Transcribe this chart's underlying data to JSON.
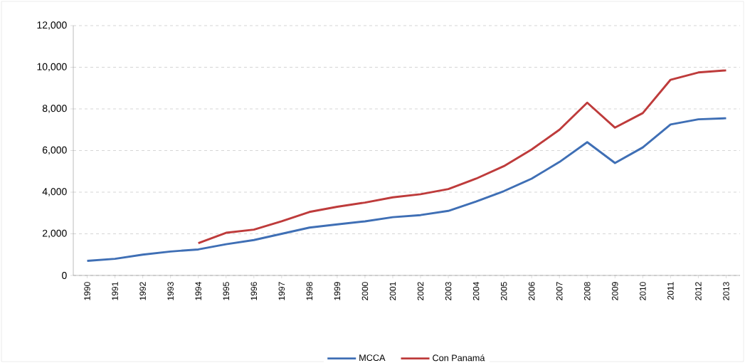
{
  "chart_data": {
    "type": "line",
    "categories": [
      "1990",
      "1991",
      "1992",
      "1993",
      "1994",
      "1995",
      "1996",
      "1997",
      "1998",
      "1999",
      "2000",
      "2001",
      "2002",
      "2003",
      "2004",
      "2005",
      "2006",
      "2007",
      "2008",
      "2009",
      "2010",
      "2011",
      "2012",
      "2013"
    ],
    "series": [
      {
        "name": "MCCA",
        "color": "#3f6fb5",
        "values": [
          700,
          800,
          1000,
          1150,
          1250,
          1500,
          1700,
          2000,
          2300,
          2450,
          2600,
          2800,
          2900,
          3100,
          3550,
          4050,
          4650,
          5450,
          6400,
          5400,
          6150,
          7250,
          7500,
          7550
        ]
      },
      {
        "name": "Con Panamá",
        "color": "#be3b3b",
        "values": [
          null,
          null,
          null,
          null,
          1550,
          2050,
          2200,
          2600,
          3050,
          3300,
          3500,
          3750,
          3900,
          4150,
          4650,
          5250,
          6050,
          7000,
          8300,
          7100,
          7800,
          9400,
          9750,
          9850
        ]
      }
    ],
    "ylim": [
      0,
      12000
    ],
    "yticks": [
      0,
      {
        "value": 2000,
        "label": "2,000"
      },
      {
        "value": 4000,
        "label": "4,000"
      },
      {
        "value": 6000,
        "label": "6,000"
      },
      {
        "value": 8000,
        "label": "8,000"
      },
      {
        "value": 10000,
        "label": "10,000"
      },
      {
        "value": 12000,
        "label": "12,000"
      }
    ],
    "grid": "y",
    "legend": "bottom"
  }
}
